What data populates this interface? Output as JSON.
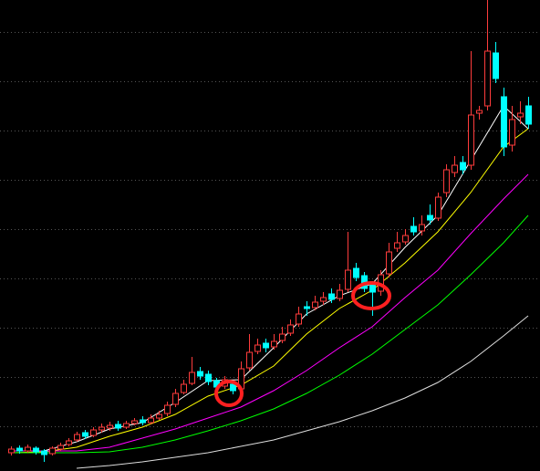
{
  "chart_data": {
    "type": "candlestick",
    "ylim": [
      0,
      516
    ],
    "yticks": [
      481,
      427,
      373,
      319,
      265,
      211,
      157,
      103,
      49
    ],
    "grid": true,
    "up_color": "#ff3c3c",
    "down_color": "#00ffff",
    "open": [
      20,
      25,
      22,
      25,
      22,
      19,
      24,
      29,
      34,
      42,
      39,
      45,
      47,
      51,
      48,
      52,
      56,
      53,
      58,
      63,
      73,
      86,
      96,
      109,
      106,
      99,
      93,
      95,
      90,
      113,
      131,
      140,
      136,
      143,
      151,
      161,
      180,
      179,
      186,
      194,
      189,
      199,
      222,
      214,
      205,
      197,
      216,
      244,
      251,
      268,
      263,
      280,
      277,
      305,
      327,
      338,
      335,
      392,
      400,
      458,
      410,
      357,
      388,
      400
    ],
    "close": [
      24,
      22,
      26,
      21,
      18,
      25,
      28,
      33,
      40,
      38,
      45,
      48,
      50,
      47,
      52,
      55,
      53,
      58,
      62,
      72,
      85,
      95,
      108,
      104,
      98,
      92,
      100,
      88,
      112,
      130,
      138,
      135,
      142,
      150,
      160,
      172,
      178,
      185,
      190,
      188,
      198,
      220,
      212,
      200,
      196,
      215,
      240,
      250,
      258,
      262,
      270,
      275,
      300,
      330,
      335,
      330,
      390,
      395,
      460,
      430,
      355,
      385,
      392,
      380
    ],
    "high": [
      27,
      28,
      29,
      27,
      24,
      27,
      31,
      36,
      43,
      45,
      48,
      52,
      54,
      55,
      55,
      58,
      60,
      62,
      66,
      76,
      90,
      100,
      125,
      114,
      110,
      102,
      104,
      99,
      120,
      150,
      145,
      145,
      150,
      158,
      166,
      180,
      186,
      192,
      196,
      200,
      205,
      262,
      228,
      218,
      208,
      220,
      250,
      262,
      265,
      278,
      280,
      292,
      305,
      336,
      345,
      345,
      460,
      400,
      516,
      470,
      420,
      400,
      405,
      410
    ],
    "low": [
      17,
      19,
      20,
      18,
      10,
      17,
      22,
      27,
      32,
      35,
      37,
      42,
      44,
      44,
      46,
      50,
      50,
      51,
      56,
      60,
      70,
      84,
      94,
      100,
      94,
      88,
      90,
      84,
      88,
      110,
      128,
      130,
      133,
      140,
      148,
      158,
      170,
      176,
      182,
      184,
      186,
      196,
      208,
      196,
      170,
      192,
      212,
      240,
      248,
      258,
      258,
      270,
      274,
      300,
      322,
      325,
      330,
      385,
      395,
      425,
      345,
      350,
      380,
      375
    ],
    "series": [
      {
        "color": "#ffffff",
        "x": [
          0,
          4,
          8,
          12,
          16,
          20,
          24,
          28,
          32,
          36,
          40,
          44,
          48,
          52,
          56,
          60,
          63
        ],
        "values": [
          22,
          22,
          32,
          46,
          53,
          75,
          99,
          100,
          135,
          172,
          192,
          205,
          245,
          280,
          340,
          400,
          375
        ]
      },
      {
        "color": "#ffff00",
        "x": [
          0,
          4,
          8,
          12,
          16,
          20,
          24,
          28,
          32,
          36,
          40,
          44,
          48,
          52,
          56,
          60,
          63
        ],
        "values": [
          20,
          21,
          26,
          38,
          48,
          62,
          82,
          94,
          115,
          150,
          178,
          198,
          228,
          262,
          305,
          355,
          375
        ]
      },
      {
        "color": "#ff00ff",
        "x": [
          0,
          4,
          8,
          12,
          16,
          20,
          24,
          28,
          32,
          36,
          40,
          44,
          48,
          52,
          56,
          60,
          63
        ],
        "values": [
          22,
          22,
          22,
          26,
          36,
          46,
          58,
          70,
          88,
          110,
          135,
          158,
          190,
          220,
          260,
          298,
          325
        ]
      },
      {
        "color": "#00ff00",
        "x": [
          0,
          4,
          8,
          12,
          16,
          20,
          24,
          28,
          32,
          36,
          40,
          44,
          48,
          52,
          56,
          60,
          63
        ],
        "values": [
          20,
          20,
          20,
          21,
          26,
          34,
          44,
          55,
          68,
          85,
          105,
          128,
          155,
          182,
          215,
          250,
          280
        ]
      },
      {
        "color": "#dddddd",
        "x": [
          8,
          12,
          16,
          20,
          24,
          28,
          32,
          36,
          40,
          44,
          48,
          52,
          56,
          60,
          63
        ],
        "values": [
          3,
          6,
          10,
          15,
          20,
          27,
          34,
          44,
          54,
          66,
          80,
          97,
          120,
          148,
          170
        ]
      }
    ]
  }
}
